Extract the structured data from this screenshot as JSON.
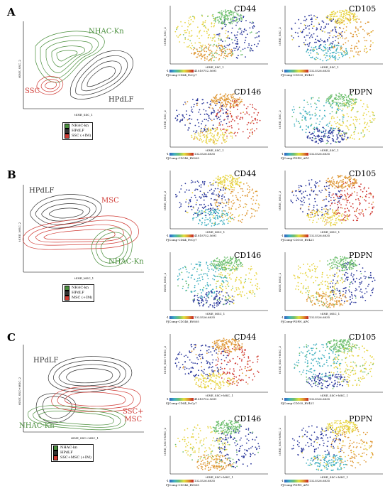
{
  "colors": {
    "green": "#4a8f3c",
    "black": "#333333",
    "red": "#d03a34",
    "blue": "#28359a",
    "yellow": "#e7d441",
    "orange": "#e09a3a"
  },
  "panels": [
    {
      "letter": "A",
      "labels": {
        "green": "NHAC-Kn",
        "black": "HPdLF",
        "red": "SSC"
      },
      "legend": [
        "NHAC-kn",
        "HPdLF",
        "SSC (+IM)"
      ],
      "xlab": "tSNE_SSC_1",
      "ylab": "tSNE_SSC_2",
      "markers": [
        {
          "name": "CD44",
          "scale": "FJComp-CD44_PeCy7",
          "max": "41818752.5691"
        },
        {
          "name": "CD105",
          "scale": "FJComp-CD105_BV421",
          "max": "1323526.6835"
        },
        {
          "name": "CD146",
          "scale": "FJComp-CD146_BV605",
          "max": "1323526.6835"
        },
        {
          "name": "PDPN",
          "scale": "FJComp-PDPN_APC",
          "max": "1323526.6835"
        }
      ]
    },
    {
      "letter": "B",
      "labels": {
        "green": "NHAC-Kn",
        "black": "HPdLF",
        "red": "MSC"
      },
      "legend": [
        "NHAC-kn",
        "HPdLF",
        "MSC (+IM)"
      ],
      "xlab": "tSNE_MSC_1",
      "ylab": "tSNE_MSC_2",
      "markers": [
        {
          "name": "CD44",
          "scale": "FJComp-CD44_PeCy7",
          "max": "41818752.5691"
        },
        {
          "name": "CD105",
          "scale": "FJComp-CD105_BV421",
          "max": "1323526.6835"
        },
        {
          "name": "CD146",
          "scale": "FJComp-CD146_BV605",
          "max": "1323526.6835"
        },
        {
          "name": "PDPN",
          "scale": "FJComp-PDPN_APC",
          "max": "1323526.6835"
        }
      ]
    },
    {
      "letter": "C",
      "labels": {
        "green": "NHAC-Kn",
        "black": "HPdLF",
        "red": "SSC+\nMSC"
      },
      "legend": [
        "NHAC-kn",
        "HPdLF",
        "SSC+MSC (+IM)"
      ],
      "xlab": "tSNE_SSC+MSC_1",
      "ylab": "tSNE_SSC+MSC_2",
      "markers": [
        {
          "name": "CD44",
          "scale": "FJComp-CD44_PeCy7",
          "max": "41818752.5691"
        },
        {
          "name": "CD105",
          "scale": "FJComp-CD105_BV421",
          "max": "1323526.6835"
        },
        {
          "name": "CD146",
          "scale": "FJComp-CD146_BV605",
          "max": "1323526.6835"
        },
        {
          "name": "PDPN",
          "scale": "FJComp-PDPN_APC",
          "max": "1323526.6835"
        }
      ]
    }
  ],
  "scale_min": "-1"
}
